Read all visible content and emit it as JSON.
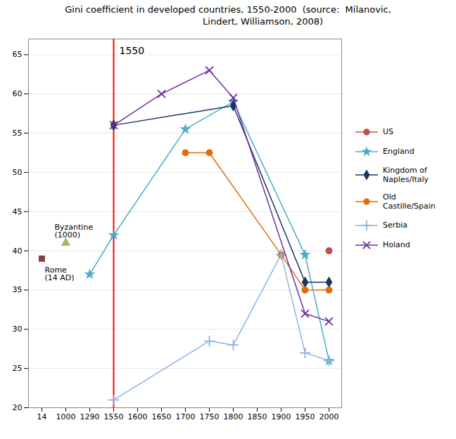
{
  "chart_data": {
    "type": "line",
    "title": "Gini coefficient in developed countries, 1550-2000  (source:  Milanovic,\n                        Lindert, Williamson, 2008)",
    "categories": [
      "14",
      "1000",
      "1290",
      "1550",
      "1600",
      "1650",
      "1700",
      "1750",
      "1800",
      "1850",
      "1900",
      "1950",
      "2000"
    ],
    "ylim": [
      20,
      67
    ],
    "yticks": [
      20,
      25,
      30,
      35,
      40,
      45,
      50,
      55,
      60,
      65
    ],
    "grid": true,
    "legend": "right",
    "series": [
      {
        "name": "US",
        "color": "#c0504d",
        "marker": "circle",
        "line_style": "solid",
        "x": [
          "2000"
        ],
        "values": [
          40
        ]
      },
      {
        "name": "England",
        "color": "#4bacc6",
        "marker": "star",
        "line_style": "solid",
        "x": [
          "1290",
          "1550",
          "1700",
          "1800",
          "1950",
          "2000"
        ],
        "values": [
          37,
          42,
          55.5,
          59,
          39.5,
          26
        ]
      },
      {
        "name": "Kingdom of\nNaples/Italy",
        "color": "#17375e",
        "marker": "diamond",
        "line_style": "solid",
        "x": [
          "1550",
          "1800",
          "1950",
          "2000"
        ],
        "values": [
          56,
          58.5,
          36,
          36
        ]
      },
      {
        "name": "Old\nCastille/Spain",
        "color": "#e36c0a",
        "marker": "circle",
        "line_style": "solid",
        "x": [
          "1700",
          "1750",
          "1900",
          "1950",
          "2000"
        ],
        "values": [
          52.5,
          52.5,
          39.5,
          35,
          35
        ]
      },
      {
        "name": "Serbia",
        "color": "#8db4e2",
        "marker": "plus",
        "line_style": "solid",
        "x": [
          "1550",
          "1750",
          "1800",
          "1900",
          "1950",
          "2000"
        ],
        "values": [
          21,
          28.5,
          28,
          39.5,
          27,
          26
        ]
      },
      {
        "name": "Holand",
        "color": "#7030a0",
        "marker": "times",
        "line_style": "solid",
        "x": [
          "1550",
          "1650",
          "1750",
          "1800",
          "1950",
          "2000"
        ],
        "values": [
          56,
          60,
          63,
          59.5,
          32,
          31
        ]
      }
    ],
    "annotations": [
      {
        "type": "point",
        "text": "Rome\n(14 AD)",
        "x": "14",
        "y": 39,
        "color": "#7f4040",
        "marker": "square"
      },
      {
        "type": "point",
        "text": "Byzantine\n(1000)",
        "x": "1000",
        "y": 41,
        "color": "#9bbb59",
        "marker": "triangle"
      },
      {
        "type": "vline",
        "text": "1550",
        "x": "1550",
        "y": 65.5,
        "color": "red"
      }
    ]
  }
}
